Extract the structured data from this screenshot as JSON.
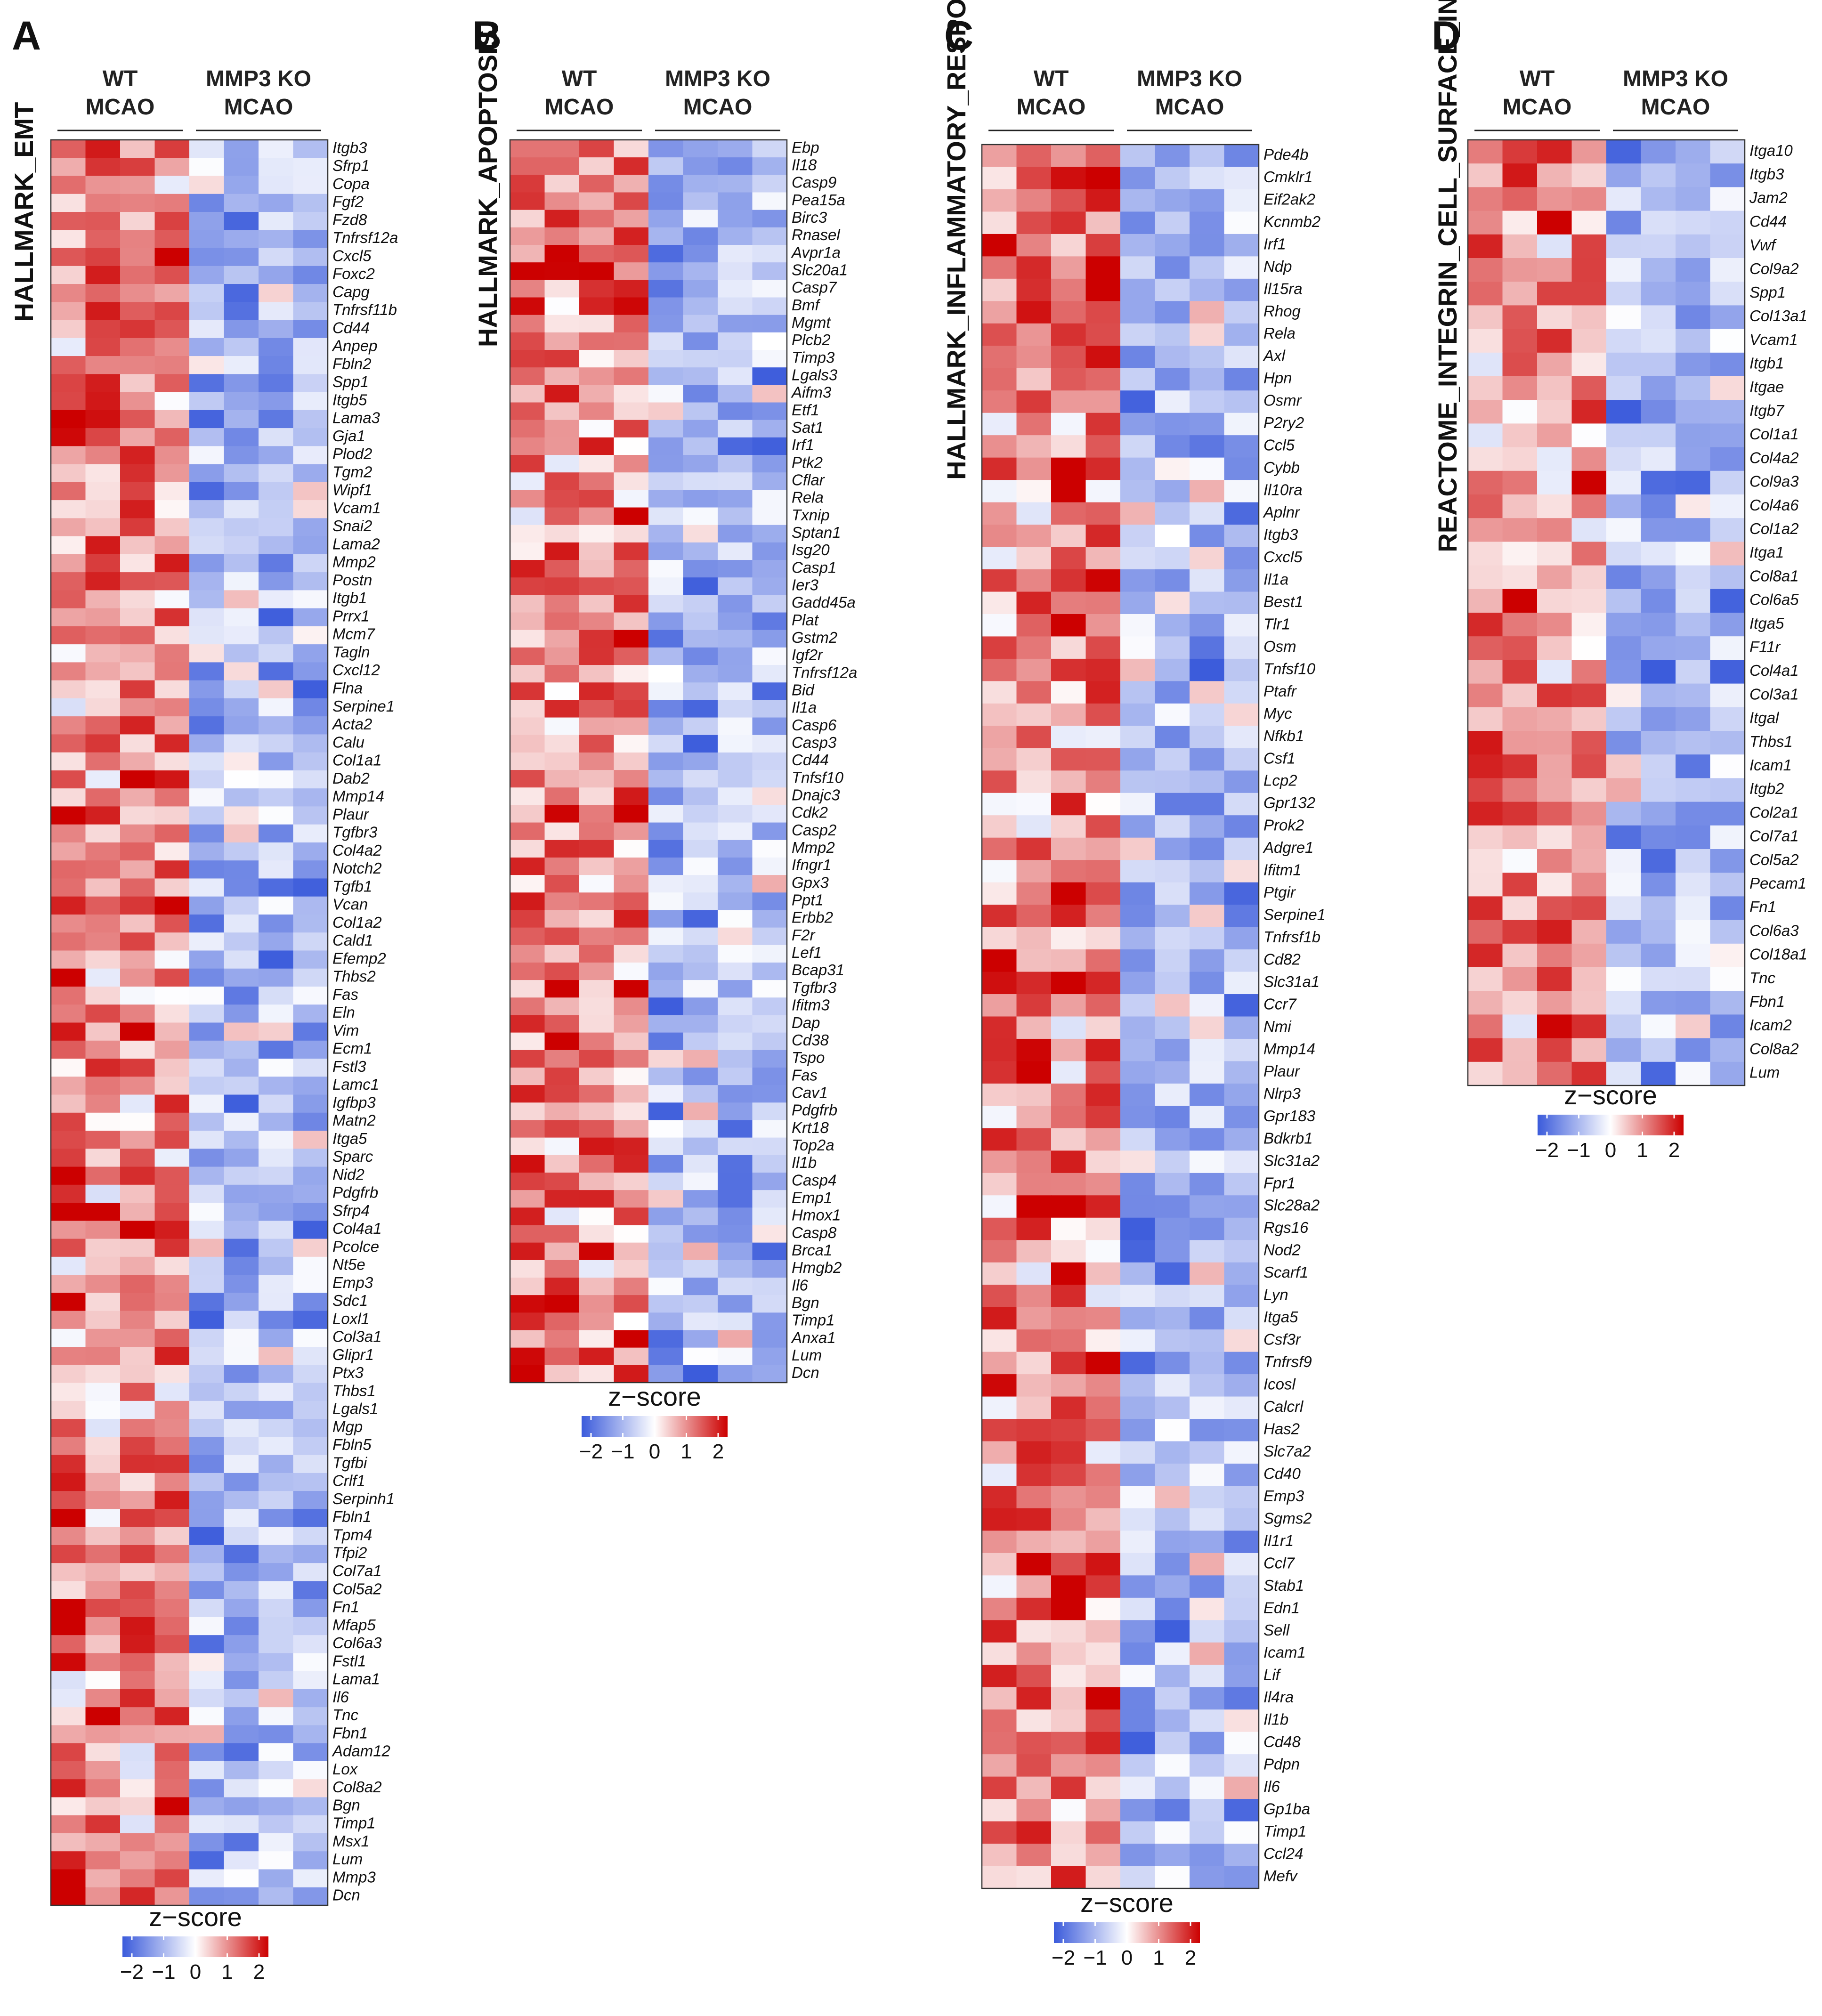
{
  "legend": {
    "title": "z−score",
    "ticks": [
      "−2",
      "−1",
      "0",
      "1",
      "2"
    ],
    "low_color": "#3b5bdb",
    "mid_color": "#ffffff",
    "high_color": "#cc0000"
  },
  "chart_data": [
    {
      "type": "heatmap",
      "panel": "A",
      "title": "HALLMARK_EMT",
      "groups": [
        "WT\nMCAO",
        "MMP3 KO\nMCAO"
      ],
      "columns_per_group": 4,
      "value_range": [
        -2,
        2
      ],
      "genes": [
        "Itgb3",
        "Sfrp1",
        "Copa",
        "Fgf2",
        "Fzd8",
        "Tnfrsf12a",
        "Cxcl5",
        "Foxc2",
        "Capg",
        "Tnfrsf11b",
        "Cd44",
        "Anpep",
        "Fbln2",
        "Spp1",
        "Itgb5",
        "Lama3",
        "Gja1",
        "Plod2",
        "Tgm2",
        "Wipf1",
        "Vcam1",
        "Snai2",
        "Lama2",
        "Mmp2",
        "Postn",
        "Itgb1",
        "Prrx1",
        "Mcm7",
        "Tagln",
        "Cxcl12",
        "Flna",
        "Serpine1",
        "Acta2",
        "Calu",
        "Col1a1",
        "Dab2",
        "Mmp14",
        "Plaur",
        "Tgfbr3",
        "Col4a2",
        "Notch2",
        "Tgfb1",
        "Vcan",
        "Col1a2",
        "Cald1",
        "Efemp2",
        "Thbs2",
        "Fas",
        "Eln",
        "Vim",
        "Ecm1",
        "Fstl3",
        "Lamc1",
        "Igfbp3",
        "Matn2",
        "Itga5",
        "Sparc",
        "Nid2",
        "Pdgfrb",
        "Sfrp4",
        "Col4a1",
        "Pcolce",
        "Nt5e",
        "Emp3",
        "Sdc1",
        "Loxl1",
        "Col3a1",
        "Glipr1",
        "Ptx3",
        "Thbs1",
        "Lgals1",
        "Mgp",
        "Fbln5",
        "Tgfbi",
        "Crlf1",
        "Serpinh1",
        "Fbln1",
        "Tpm4",
        "Tfpi2",
        "Col7a1",
        "Col5a2",
        "Fn1",
        "Mfap5",
        "Col6a3",
        "Fstl1",
        "Lama1",
        "Il6",
        "Tnc",
        "Fbn1",
        "Adam12",
        "Lox",
        "Col8a2",
        "Bgn",
        "Timp1",
        "Msx1",
        "Lum",
        "Mmp3",
        "Dcn"
      ]
    },
    {
      "type": "heatmap",
      "panel": "B",
      "title": "HALLMARK_APOPTOSIS",
      "groups": [
        "WT\nMCAO",
        "MMP3 KO\nMCAO"
      ],
      "columns_per_group": 4,
      "value_range": [
        -2,
        2
      ],
      "genes": [
        "Ebp",
        "Il18",
        "Casp9",
        "Pea15a",
        "Birc3",
        "Rnasel",
        "Avpr1a",
        "Slc20a1",
        "Casp7",
        "Bmf",
        "Mgmt",
        "Plcb2",
        "Timp3",
        "Lgals3",
        "Aifm3",
        "Etf1",
        "Sat1",
        "Irf1",
        "Ptk2",
        "Cflar",
        "Rela",
        "Txnip",
        "Sptan1",
        "Isg20",
        "Casp1",
        "Ier3",
        "Gadd45a",
        "Plat",
        "Gstm2",
        "Igf2r",
        "Tnfrsf12a",
        "Bid",
        "Il1a",
        "Casp6",
        "Casp3",
        "Cd44",
        "Tnfsf10",
        "Dnajc3",
        "Cdk2",
        "Casp2",
        "Mmp2",
        "Ifngr1",
        "Gpx3",
        "Ppt1",
        "Erbb2",
        "F2r",
        "Lef1",
        "Bcap31",
        "Tgfbr3",
        "Ifitm3",
        "Dap",
        "Cd38",
        "Tspo",
        "Fas",
        "Cav1",
        "Pdgfrb",
        "Krt18",
        "Top2a",
        "Il1b",
        "Casp4",
        "Emp1",
        "Hmox1",
        "Casp8",
        "Brca1",
        "Hmgb2",
        "Il6",
        "Bgn",
        "Timp1",
        "Anxa1",
        "Lum",
        "Dcn"
      ]
    },
    {
      "type": "heatmap",
      "panel": "C",
      "title": "HALLMARK_INFLAMMATORY_RESPONSE",
      "groups": [
        "WT\nMCAO",
        "MMP3 KO\nMCAO"
      ],
      "columns_per_group": 4,
      "value_range": [
        -2,
        2
      ],
      "genes": [
        "Pde4b",
        "Cmklr1",
        "Eif2ak2",
        "Kcnmb2",
        "Irf1",
        "Ndp",
        "Il15ra",
        "Rhog",
        "Rela",
        "Axl",
        "Hpn",
        "Osmr",
        "P2ry2",
        "Ccl5",
        "Cybb",
        "Il10ra",
        "Aplnr",
        "Itgb3",
        "Cxcl5",
        "Il1a",
        "Best1",
        "Tlr1",
        "Osm",
        "Tnfsf10",
        "Ptafr",
        "Myc",
        "Nfkb1",
        "Csf1",
        "Lcp2",
        "Gpr132",
        "Prok2",
        "Adgre1",
        "Ifitm1",
        "Ptgir",
        "Serpine1",
        "Tnfrsf1b",
        "Cd82",
        "Slc31a1",
        "Ccr7",
        "Nmi",
        "Mmp14",
        "Plaur",
        "Nlrp3",
        "Gpr183",
        "Bdkrb1",
        "Slc31a2",
        "Fpr1",
        "Slc28a2",
        "Rgs16",
        "Nod2",
        "Scarf1",
        "Lyn",
        "Itga5",
        "Csf3r",
        "Tnfrsf9",
        "Icosl",
        "Calcrl",
        "Has2",
        "Slc7a2",
        "Cd40",
        "Emp3",
        "Sgms2",
        "Il1r1",
        "Ccl7",
        "Stab1",
        "Edn1",
        "Sell",
        "Icam1",
        "Lif",
        "Il4ra",
        "Il1b",
        "Cd48",
        "Pdpn",
        "Il6",
        "Gp1ba",
        "Timp1",
        "Ccl24",
        "Mefv"
      ]
    },
    {
      "type": "heatmap",
      "panel": "D",
      "title": "REACTOME_INTEGRIN_CELL_SURFACE_INTERACTIONS",
      "groups": [
        "WT\nMCAO",
        "MMP3 KO\nMCAO"
      ],
      "columns_per_group": 4,
      "value_range": [
        -2,
        2
      ],
      "genes": [
        "Itga10",
        "Itgb3",
        "Jam2",
        "Cd44",
        "Vwf",
        "Col9a2",
        "Spp1",
        "Col13a1",
        "Vcam1",
        "Itgb1",
        "Itgae",
        "Itgb7",
        "Col1a1",
        "Col4a2",
        "Col9a3",
        "Col4a6",
        "Col1a2",
        "Itga1",
        "Col8a1",
        "Col6a5",
        "Itga5",
        "F11r",
        "Col4a1",
        "Col3a1",
        "Itgal",
        "Thbs1",
        "Icam1",
        "Itgb2",
        "Col2a1",
        "Col7a1",
        "Col5a2",
        "Pecam1",
        "Fn1",
        "Col6a3",
        "Col18a1",
        "Tnc",
        "Fbn1",
        "Icam2",
        "Col8a2",
        "Lum"
      ]
    }
  ]
}
